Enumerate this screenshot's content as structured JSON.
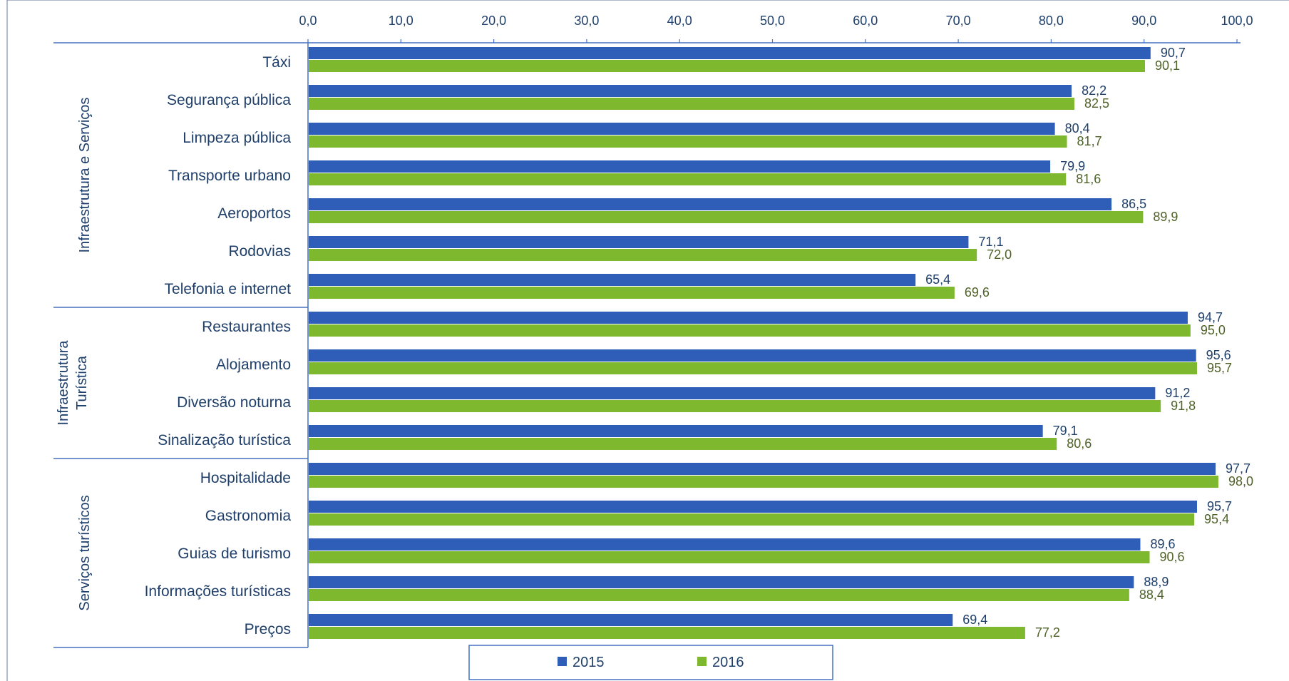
{
  "chart_data": {
    "type": "bar",
    "orientation": "horizontal",
    "title": "",
    "xlabel": "",
    "ylabel": "",
    "xlim": [
      0,
      100
    ],
    "ticks": [
      "0,0",
      "10,0",
      "20,0",
      "30,0",
      "40,0",
      "50,0",
      "60,0",
      "70,0",
      "80,0",
      "90,0",
      "100,0"
    ],
    "tick_values": [
      0,
      10,
      20,
      30,
      40,
      50,
      60,
      70,
      80,
      90,
      100
    ],
    "axis_position": "top",
    "grid": false,
    "legend_position": "bottom",
    "groups": [
      {
        "label_lines": [
          "Infraestrutura  e Serviços"
        ],
        "start": 0,
        "count": 7
      },
      {
        "label_lines": [
          "Infraestrutura",
          "Turística"
        ],
        "start": 7,
        "count": 4
      },
      {
        "label_lines": [
          "Serviços turísticos"
        ],
        "start": 11,
        "count": 5
      }
    ],
    "categories": [
      "Táxi",
      "Segurança pública",
      "Limpeza pública",
      "Transporte urbano",
      "Aeroportos",
      "Rodovias",
      "Telefonia e internet",
      "Restaurantes",
      "Alojamento",
      "Diversão noturna",
      "Sinalização turística",
      "Hospitalidade",
      "Gastronomia",
      "Guias de turismo",
      "Informações turísticas",
      "Preços"
    ],
    "series": [
      {
        "name": "2015",
        "color": "#2E5EB8",
        "values": [
          90.7,
          82.2,
          80.4,
          79.9,
          86.5,
          71.1,
          65.4,
          94.7,
          95.6,
          91.2,
          79.1,
          97.7,
          95.7,
          89.6,
          88.9,
          69.4
        ],
        "labels": [
          "90,7",
          "82,2",
          "80,4",
          "79,9",
          "86,5",
          "71,1",
          "65,4",
          "94,7",
          "95,6",
          "91,2",
          "79,1",
          "97,7",
          "95,7",
          "89,6",
          "88,9",
          "69,4"
        ]
      },
      {
        "name": "2016",
        "color": "#7DB82E",
        "values": [
          90.1,
          82.5,
          81.7,
          81.6,
          89.9,
          72.0,
          69.6,
          95.0,
          95.7,
          91.8,
          80.6,
          98.0,
          95.4,
          90.6,
          88.4,
          77.2
        ],
        "labels": [
          "90,1",
          "82,5",
          "81,7",
          "81,6",
          "89,9",
          "72,0",
          "69,6",
          "95,0",
          "95,7",
          "91,8",
          "80,6",
          "98,0",
          "95,4",
          "90,6",
          "88,4",
          "77,2"
        ]
      }
    ]
  },
  "colors": {
    "axis": "#4472C4",
    "text": "#1F3F6B",
    "label_2016": "#4F6228"
  }
}
